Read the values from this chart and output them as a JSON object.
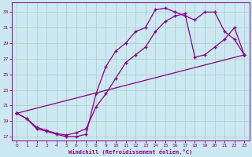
{
  "xlabel": "Windchill (Refroidissement éolien,°C)",
  "bg_color": "#cce8f0",
  "line_color": "#880088",
  "grid_color": "#aacccc",
  "xlim": [
    -0.5,
    23.5
  ],
  "ylim": [
    16.5,
    34.2
  ],
  "xticks": [
    0,
    1,
    2,
    3,
    4,
    5,
    6,
    7,
    8,
    9,
    10,
    11,
    12,
    13,
    14,
    15,
    16,
    17,
    18,
    19,
    20,
    21,
    22,
    23
  ],
  "yticks": [
    17,
    19,
    21,
    23,
    25,
    27,
    29,
    31,
    33
  ],
  "series1_x": [
    0,
    1,
    2,
    3,
    4,
    5,
    6,
    7,
    8,
    9,
    10,
    11,
    12,
    13,
    14,
    15,
    16,
    17,
    18,
    19,
    20,
    21,
    22,
    23
  ],
  "series1_y": [
    20.0,
    19.3,
    18.0,
    17.7,
    17.3,
    17.0,
    17.0,
    17.3,
    22.5,
    26.0,
    28.0,
    29.0,
    30.5,
    31.0,
    33.3,
    33.5,
    33.0,
    32.5,
    32.0,
    33.0,
    33.0,
    30.5,
    29.5,
    27.5
  ],
  "series2_x": [
    0,
    1,
    2,
    3,
    4,
    5,
    6,
    7,
    8,
    9,
    10,
    11,
    12,
    13,
    14,
    15,
    16,
    17,
    18,
    19,
    20,
    21,
    22,
    23
  ],
  "series2_y": [
    20.0,
    19.3,
    18.2,
    17.8,
    17.4,
    17.2,
    17.5,
    18.0,
    20.8,
    22.5,
    24.5,
    26.5,
    27.5,
    28.5,
    30.5,
    31.8,
    32.5,
    32.8,
    27.2,
    27.5,
    28.5,
    29.5,
    31.0,
    27.5
  ],
  "series3_x": [
    0,
    23
  ],
  "series3_y": [
    20.0,
    27.5
  ],
  "marker": "+",
  "markersize": 3,
  "linewidth": 0.9
}
